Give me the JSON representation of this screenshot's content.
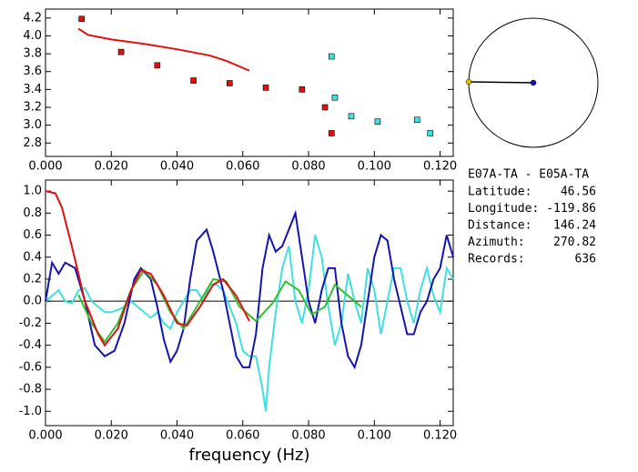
{
  "chart_data": [
    {
      "type": "scatter",
      "xlim": [
        0,
        0.124
      ],
      "ylim": [
        2.65,
        4.3
      ],
      "xticks": [
        {
          "value": 0,
          "label": "0.000"
        },
        {
          "value": 0.02,
          "label": "0.020"
        },
        {
          "value": 0.04,
          "label": "0.040"
        },
        {
          "value": 0.06,
          "label": "0.060"
        },
        {
          "value": 0.08,
          "label": "0.080"
        },
        {
          "value": 0.1,
          "label": "0.100"
        },
        {
          "value": 0.12,
          "label": "0.120"
        }
      ],
      "yticks": [
        {
          "value": 2.8,
          "label": "2.8"
        },
        {
          "value": 3.0,
          "label": "3.0"
        },
        {
          "value": 3.2,
          "label": "3.2"
        },
        {
          "value": 3.4,
          "label": "3.4"
        },
        {
          "value": 3.6,
          "label": "3.6"
        },
        {
          "value": 3.8,
          "label": "3.8"
        },
        {
          "value": 4.0,
          "label": "4.0"
        },
        {
          "value": 4.2,
          "label": "4.2"
        }
      ],
      "series": [
        {
          "type": "markers",
          "color": "#e01010",
          "x": [
            0.011,
            0.023,
            0.034,
            0.045,
            0.056,
            0.067,
            0.078,
            0.085,
            0.087
          ],
          "values": [
            4.19,
            3.82,
            3.67,
            3.5,
            3.47,
            3.42,
            3.4,
            3.2,
            2.91
          ]
        },
        {
          "type": "markers",
          "color": "#40e0e0",
          "x": [
            0.087,
            0.088,
            0.093,
            0.101,
            0.113,
            0.117
          ],
          "values": [
            3.77,
            3.31,
            3.1,
            3.04,
            3.06,
            2.91
          ]
        },
        {
          "type": "lines",
          "color": "#e01010",
          "x": [
            0.01,
            0.013,
            0.02,
            0.03,
            0.04,
            0.05,
            0.055,
            0.062
          ],
          "values": [
            4.08,
            4.01,
            3.96,
            3.91,
            3.85,
            3.78,
            3.72,
            3.61
          ]
        }
      ]
    },
    {
      "type": "line",
      "xlabel": "frequency (Hz)",
      "xlim": [
        0,
        0.124
      ],
      "ylim": [
        -1.13,
        1.1
      ],
      "xticks": [
        {
          "value": 0,
          "label": "0.000"
        },
        {
          "value": 0.02,
          "label": "0.020"
        },
        {
          "value": 0.04,
          "label": "0.040"
        },
        {
          "value": 0.06,
          "label": "0.060"
        },
        {
          "value": 0.08,
          "label": "0.080"
        },
        {
          "value": 0.1,
          "label": "0.100"
        },
        {
          "value": 0.12,
          "label": "0.120"
        }
      ],
      "yticks": [
        {
          "value": -1.0,
          "label": "-1.0"
        },
        {
          "value": -0.8,
          "label": "-0.8"
        },
        {
          "value": -0.6,
          "label": "-0.6"
        },
        {
          "value": -0.4,
          "label": "-0.4"
        },
        {
          "value": -0.2,
          "label": "-0.2"
        },
        {
          "value": 0,
          "label": "0.0"
        },
        {
          "value": 0.2,
          "label": "0.2"
        },
        {
          "value": 0.4,
          "label": "0.4"
        },
        {
          "value": 0.6,
          "label": "0.6"
        },
        {
          "value": 0.8,
          "label": "0.8"
        },
        {
          "value": 1.0,
          "label": "1.0"
        }
      ],
      "series": [
        {
          "color": "#40e0e0",
          "x": [
            0,
            0.002,
            0.004,
            0.006,
            0.008,
            0.01,
            0.012,
            0.014,
            0.016,
            0.018,
            0.02,
            0.022,
            0.024,
            0.026,
            0.028,
            0.03,
            0.032,
            0.034,
            0.036,
            0.038,
            0.04,
            0.042,
            0.044,
            0.046,
            0.048,
            0.05,
            0.052,
            0.054,
            0.056,
            0.058,
            0.06,
            0.062,
            0.064,
            0.066,
            0.067,
            0.068,
            0.07,
            0.072,
            0.074,
            0.076,
            0.078,
            0.08,
            0.082,
            0.084,
            0.086,
            0.088,
            0.09,
            0.092,
            0.094,
            0.096,
            0.098,
            0.1,
            0.102,
            0.104,
            0.106,
            0.108,
            0.11,
            0.112,
            0.114,
            0.116,
            0.118,
            0.12,
            0.122,
            0.124
          ],
          "values": [
            0.0,
            0.05,
            0.1,
            0.0,
            -0.02,
            0.1,
            0.12,
            0.0,
            -0.05,
            -0.1,
            -0.1,
            -0.08,
            -0.05,
            0.0,
            -0.05,
            -0.1,
            -0.15,
            -0.1,
            -0.2,
            -0.25,
            -0.1,
            0.0,
            0.1,
            0.1,
            0.0,
            0.15,
            0.15,
            0.1,
            -0.05,
            -0.2,
            -0.45,
            -0.5,
            -0.5,
            -0.8,
            -1.0,
            -0.6,
            -0.1,
            0.3,
            0.5,
            0.0,
            -0.2,
            0.1,
            0.6,
            0.4,
            -0.05,
            -0.4,
            -0.2,
            0.25,
            0.0,
            -0.2,
            0.3,
            0.1,
            -0.3,
            0.0,
            0.3,
            0.3,
            0.0,
            -0.2,
            0.1,
            0.3,
            0.05,
            -0.1,
            0.3,
            0.2
          ]
        },
        {
          "color": "#1414b0",
          "x": [
            0,
            0.002,
            0.004,
            0.006,
            0.009,
            0.012,
            0.015,
            0.018,
            0.021,
            0.024,
            0.027,
            0.029,
            0.032,
            0.034,
            0.036,
            0.038,
            0.04,
            0.042,
            0.044,
            0.046,
            0.049,
            0.051,
            0.054,
            0.056,
            0.058,
            0.06,
            0.062,
            0.064,
            0.066,
            0.068,
            0.07,
            0.072,
            0.074,
            0.076,
            0.078,
            0.08,
            0.082,
            0.084,
            0.086,
            0.088,
            0.09,
            0.092,
            0.094,
            0.096,
            0.098,
            0.1,
            0.102,
            0.104,
            0.106,
            0.108,
            0.11,
            0.112,
            0.114,
            0.116,
            0.118,
            0.12,
            0.122,
            0.124
          ],
          "values": [
            0.0,
            0.35,
            0.25,
            0.35,
            0.3,
            0.0,
            -0.4,
            -0.5,
            -0.45,
            -0.2,
            0.2,
            0.3,
            0.2,
            -0.05,
            -0.35,
            -0.55,
            -0.45,
            -0.25,
            0.2,
            0.55,
            0.65,
            0.45,
            0.1,
            -0.2,
            -0.5,
            -0.6,
            -0.6,
            -0.3,
            0.3,
            0.6,
            0.45,
            0.5,
            0.65,
            0.8,
            0.4,
            0.0,
            -0.2,
            0.1,
            0.3,
            0.3,
            -0.2,
            -0.5,
            -0.6,
            -0.4,
            0.0,
            0.4,
            0.6,
            0.55,
            0.2,
            -0.05,
            -0.3,
            -0.3,
            -0.1,
            0.0,
            0.2,
            0.3,
            0.6,
            0.4
          ]
        },
        {
          "color": "#30c030",
          "x": [
            0.01,
            0.014,
            0.018,
            0.022,
            0.026,
            0.03,
            0.034,
            0.038,
            0.042,
            0.046,
            0.051,
            0.055,
            0.059,
            0.064,
            0.069,
            0.073,
            0.077,
            0.081,
            0.085,
            0.088,
            0.092,
            0.096
          ],
          "values": [
            0.06,
            -0.2,
            -0.37,
            -0.2,
            0.1,
            0.28,
            0.15,
            -0.1,
            -0.25,
            -0.05,
            0.2,
            0.18,
            -0.05,
            -0.18,
            -0.02,
            0.18,
            0.1,
            -0.12,
            -0.05,
            0.15,
            0.05,
            -0.05
          ]
        },
        {
          "color": "#e01010",
          "x": [
            0,
            0.003,
            0.005,
            0.008,
            0.012,
            0.016,
            0.018,
            0.022,
            0.026,
            0.029,
            0.032,
            0.036,
            0.04,
            0.043,
            0.047,
            0.051,
            0.054,
            0.058,
            0.062
          ],
          "values": [
            1.0,
            0.98,
            0.85,
            0.5,
            0.0,
            -0.3,
            -0.4,
            -0.25,
            0.1,
            0.28,
            0.25,
            0.05,
            -0.2,
            -0.22,
            -0.05,
            0.15,
            0.2,
            0.05,
            -0.18
          ]
        }
      ]
    }
  ],
  "info": {
    "title": "E07A-TA  -  E05A-TA",
    "rows": [
      {
        "label": "Latitude:",
        "value": 46.56
      },
      {
        "label": "Longitude:",
        "value": -119.86
      },
      {
        "label": "Distance:",
        "value": 146.24
      },
      {
        "label": "Azimuth:",
        "value": 270.82
      },
      {
        "label": "Records:",
        "value": 636
      }
    ]
  }
}
